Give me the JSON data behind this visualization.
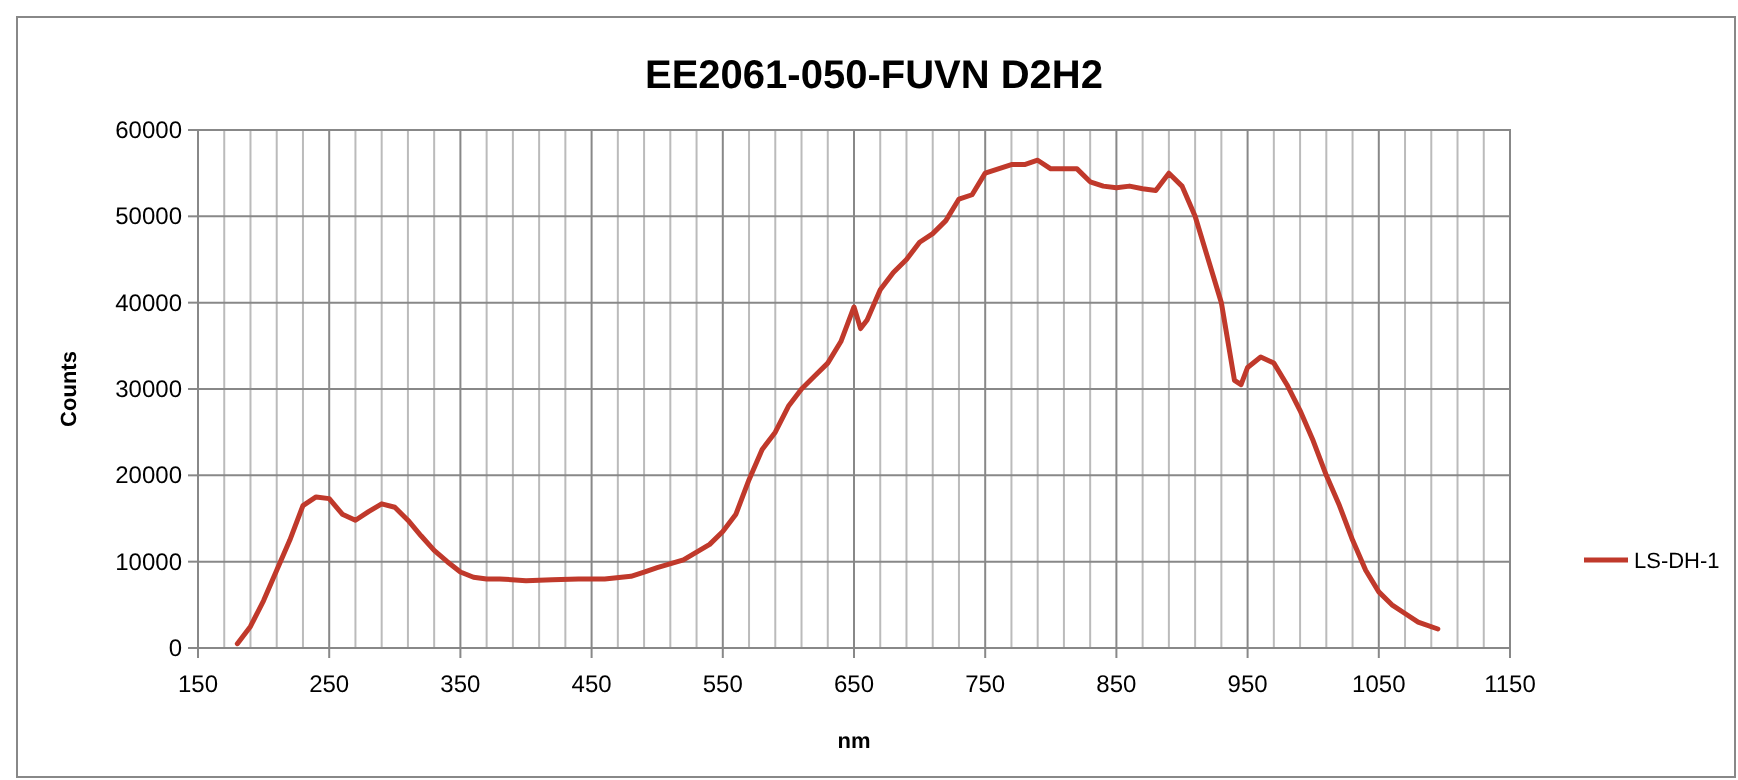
{
  "chart_data": {
    "type": "line",
    "title": "EE2061-050-FUVN D2H2",
    "xlabel": "nm",
    "ylabel": "Counts",
    "xlim": [
      150,
      1150
    ],
    "xticks": [
      150,
      250,
      350,
      450,
      550,
      650,
      750,
      850,
      950,
      1050,
      1150
    ],
    "ylim": [
      0,
      60000
    ],
    "yticks": [
      0,
      10000,
      20000,
      30000,
      40000,
      50000,
      60000
    ],
    "grid": true,
    "legend": "right",
    "marker": "none",
    "line_style": "solid",
    "x": [
      180,
      190,
      200,
      210,
      220,
      230,
      240,
      250,
      260,
      270,
      280,
      290,
      300,
      310,
      320,
      330,
      340,
      350,
      360,
      370,
      380,
      400,
      420,
      440,
      460,
      480,
      490,
      500,
      520,
      540,
      550,
      560,
      570,
      580,
      590,
      600,
      610,
      620,
      630,
      640,
      650,
      655,
      660,
      670,
      680,
      690,
      700,
      710,
      720,
      730,
      740,
      750,
      760,
      770,
      780,
      790,
      800,
      810,
      820,
      830,
      840,
      850,
      860,
      870,
      880,
      890,
      900,
      910,
      920,
      930,
      940,
      945,
      950,
      960,
      970,
      980,
      990,
      1000,
      1010,
      1020,
      1030,
      1040,
      1050,
      1060,
      1070,
      1080,
      1095
    ],
    "series": [
      {
        "name": "LS-DH-1",
        "color": "#c0392b",
        "values": [
          500,
          2500,
          5500,
          9000,
          12500,
          16500,
          17500,
          17300,
          15500,
          14800,
          15800,
          16700,
          16300,
          14800,
          13000,
          11300,
          10000,
          8800,
          8200,
          8000,
          8000,
          7800,
          7900,
          8000,
          8000,
          8300,
          8800,
          9300,
          10200,
          12000,
          13500,
          15500,
          19500,
          23000,
          25000,
          28000,
          30000,
          31500,
          33000,
          35500,
          39500,
          37000,
          38000,
          41500,
          43500,
          45000,
          47000,
          48000,
          49500,
          52000,
          52500,
          55000,
          55500,
          56000,
          56000,
          56500,
          55500,
          55500,
          55500,
          54000,
          53500,
          53300,
          53500,
          53200,
          53000,
          55000,
          53500,
          50000,
          45000,
          40000,
          31000,
          30500,
          32500,
          33700,
          33000,
          30500,
          27500,
          24000,
          20000,
          16500,
          12500,
          9000,
          6500,
          5000,
          4000,
          3000,
          2200
        ]
      }
    ]
  }
}
